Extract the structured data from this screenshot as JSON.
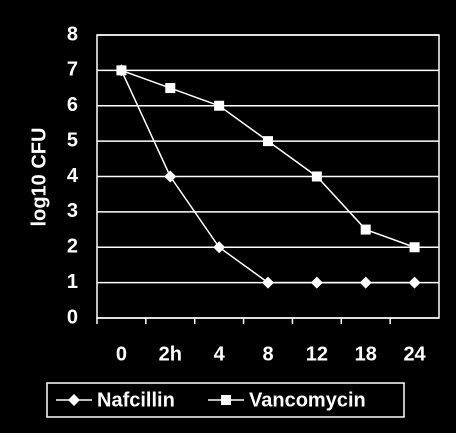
{
  "chart_data": {
    "type": "line",
    "y_label": "log10 CFU",
    "categories": [
      "0",
      "2h",
      "4",
      "8",
      "12",
      "18",
      "24"
    ],
    "series": [
      {
        "name": "Nafcillin",
        "color": "#ffffff",
        "marker": "diamond",
        "values": [
          7,
          4,
          2,
          1,
          1,
          1,
          1
        ]
      },
      {
        "name": "Vancomycin",
        "color": "#ffffff",
        "marker": "square",
        "values": [
          7,
          6.5,
          6,
          5,
          4,
          2.5,
          2
        ]
      }
    ],
    "ylim": [
      0,
      8
    ],
    "yticks": [
      0,
      1,
      2,
      3,
      4,
      5,
      6,
      7,
      8
    ],
    "grid": true,
    "legend": "bottom"
  }
}
